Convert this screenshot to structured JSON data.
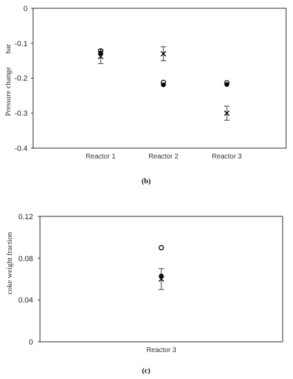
{
  "chart_data": [
    {
      "type": "scatter",
      "caption": "(b)",
      "title": "",
      "ylabel": "Pressure change",
      "yunit": "bar",
      "ylim": [
        -0.4,
        0
      ],
      "yticks": [
        "0",
        "-0.1",
        "-0.2",
        "-0.3",
        "-0.4"
      ],
      "ytick_values": [
        0,
        -0.1,
        -0.2,
        -0.3,
        -0.4
      ],
      "categories": [
        "Reactor 1",
        "Reactor 2",
        "Reactor 3"
      ],
      "grid": false,
      "series": [
        {
          "marker": "open-circle",
          "values": [
            -0.122,
            -0.212,
            -0.213
          ]
        },
        {
          "marker": "filled-circle",
          "values": [
            -0.128,
            -0.219,
            -0.218
          ]
        },
        {
          "marker": "cross",
          "values": [
            -0.138,
            -0.13,
            -0.3
          ],
          "error": [
            0.02,
            0.02,
            0.02
          ]
        }
      ]
    },
    {
      "type": "scatter",
      "caption": "(c)",
      "title": "",
      "ylabel": "coke weight fraction",
      "ylim": [
        0,
        0.12
      ],
      "yticks": [
        "0.12",
        "0.08",
        "0.04",
        "0"
      ],
      "ytick_values": [
        0.12,
        0.08,
        0.04,
        0
      ],
      "categories": [
        "Reactor 3"
      ],
      "grid": false,
      "series": [
        {
          "marker": "open-circle",
          "values": [
            0.09
          ]
        },
        {
          "marker": "filled-circle",
          "values": [
            0.063
          ]
        },
        {
          "marker": "cross",
          "values": [
            0.06
          ],
          "error": [
            0.01
          ]
        }
      ]
    }
  ]
}
